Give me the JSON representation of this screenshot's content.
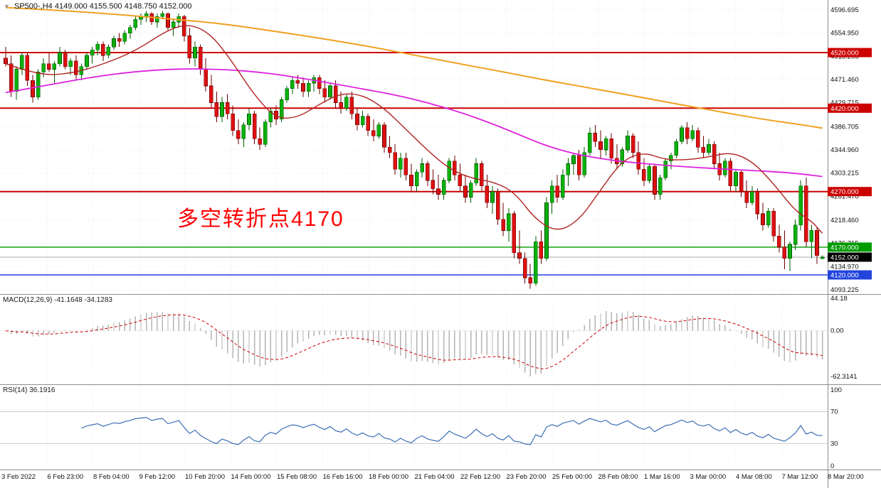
{
  "window": {
    "symbol_period": "SP500-,H4",
    "ohlc": "4149.000 4155.500 4148.750 4152.000"
  },
  "indicators": {
    "macd": {
      "label": "MACD(12,26,9) -41.1648 -34.1283",
      "params": [
        12,
        26,
        9
      ],
      "current": {
        "macd": -41.1648,
        "signal": -34.1283
      },
      "axis_labels": [
        "44.18",
        "0.00",
        "-62.3141"
      ],
      "axis_values": [
        44.18,
        0,
        -62.3141
      ]
    },
    "rsi": {
      "label": "RSI(14) 36.1916",
      "period": 14,
      "current": 36.1916,
      "axis_labels": [
        "100",
        "70",
        "30",
        "0"
      ],
      "axis_values": [
        100,
        70,
        30,
        0
      ],
      "levels": [
        70,
        30
      ]
    }
  },
  "colors": {
    "bull": "#0cb00c",
    "bull_border": "#005a00",
    "bear": "#dd1111",
    "bear_border": "#6b0000",
    "line_red": "#cc0000",
    "line_green": "#009b00",
    "line_blue": "#2244dd",
    "current_badge": "#000000",
    "macd_hist": "#b4b4b4",
    "macd_signal": "#cc0000",
    "rsi_line": "#3b6fb5",
    "grid": "#e7e7e7",
    "separator": "#8f8f8f"
  },
  "chart_data": {
    "type": "candlestick",
    "symbol": "SP500-",
    "timeframe": "H4",
    "title": "SP500-,H4",
    "ylim": [
      4093.225,
      4596.695
    ],
    "y_axis_labels": [
      "4596.695",
      "4554.950",
      "4513.205",
      "4471.460",
      "4429.715",
      "4386.705",
      "4344.960",
      "4303.215",
      "4261.470",
      "4218.460",
      "4176.715",
      "4134.970",
      "4093.225"
    ],
    "x_axis_labels": [
      "3 Feb 2022",
      "6 Feb 23:00",
      "8 Feb 04:00",
      "9 Feb 12:00",
      "10 Feb 20:00",
      "14 Feb 00:00",
      "15 Feb 08:00",
      "16 Feb 16:00",
      "18 Feb 00:00",
      "21 Feb 04:00",
      "22 Feb 12:00",
      "23 Feb 20:00",
      "25 Feb 00:00",
      "28 Feb 08:00",
      "1 Mar 16:00",
      "3 Mar 00:00",
      "4 Mar 08:00",
      "7 Mar 12:00",
      "8 Mar 20:00"
    ],
    "annotation": {
      "text": "多空转折点4170",
      "color": "#ff0000"
    },
    "horizontal_lines": [
      {
        "price": 4520,
        "label": "4520.000",
        "color": "#cc0000",
        "width": 2
      },
      {
        "price": 4420,
        "label": "4420.000",
        "color": "#cc0000",
        "width": 2
      },
      {
        "price": 4270,
        "label": "4270.000",
        "color": "#cc0000",
        "width": 2
      },
      {
        "price": 4170,
        "label": "4170.000",
        "color": "#009b00",
        "width": 1.4
      },
      {
        "price": 4120,
        "label": "4120.000",
        "color": "#2244dd",
        "width": 1.4
      }
    ],
    "current_price": {
      "price": 4152,
      "label": "4152.000"
    },
    "candles": [
      [
        4510,
        4530,
        4495,
        4500
      ],
      [
        4500,
        4515,
        4440,
        4450
      ],
      [
        4450,
        4495,
        4435,
        4490
      ],
      [
        4490,
        4520,
        4480,
        4515
      ],
      [
        4515,
        4520,
        4460,
        4470
      ],
      [
        4470,
        4480,
        4430,
        4440
      ],
      [
        4440,
        4490,
        4435,
        4485
      ],
      [
        4485,
        4510,
        4475,
        4500
      ],
      [
        4500,
        4520,
        4485,
        4490
      ],
      [
        4490,
        4505,
        4465,
        4500
      ],
      [
        4500,
        4530,
        4495,
        4520
      ],
      [
        4520,
        4525,
        4490,
        4495
      ],
      [
        4495,
        4510,
        4480,
        4505
      ],
      [
        4505,
        4515,
        4470,
        4480
      ],
      [
        4480,
        4500,
        4470,
        4495
      ],
      [
        4495,
        4520,
        4490,
        4515
      ],
      [
        4515,
        4530,
        4500,
        4525
      ],
      [
        4525,
        4540,
        4515,
        4535
      ],
      [
        4535,
        4540,
        4505,
        4515
      ],
      [
        4515,
        4535,
        4510,
        4530
      ],
      [
        4530,
        4550,
        4525,
        4545
      ],
      [
        4545,
        4555,
        4530,
        4540
      ],
      [
        4540,
        4560,
        4535,
        4555
      ],
      [
        4555,
        4570,
        4545,
        4565
      ],
      [
        4565,
        4585,
        4560,
        4580
      ],
      [
        4580,
        4590,
        4570,
        4585
      ],
      [
        4585,
        4595,
        4575,
        4590
      ],
      [
        4590,
        4593,
        4570,
        4575
      ],
      [
        4575,
        4590,
        4565,
        4585
      ],
      [
        4585,
        4595,
        4580,
        4590
      ],
      [
        4590,
        4592,
        4560,
        4565
      ],
      [
        4565,
        4580,
        4550,
        4575
      ],
      [
        4575,
        4590,
        4565,
        4585
      ],
      [
        4585,
        4588,
        4540,
        4550
      ],
      [
        4550,
        4565,
        4500,
        4510
      ],
      [
        4510,
        4540,
        4495,
        4530
      ],
      [
        4530,
        4535,
        4480,
        4490
      ],
      [
        4490,
        4510,
        4450,
        4460
      ],
      [
        4460,
        4480,
        4420,
        4430
      ],
      [
        4430,
        4450,
        4395,
        4405
      ],
      [
        4405,
        4440,
        4395,
        4430
      ],
      [
        4430,
        4445,
        4400,
        4410
      ],
      [
        4410,
        4425,
        4370,
        4380
      ],
      [
        4380,
        4400,
        4355,
        4365
      ],
      [
        4365,
        4395,
        4350,
        4390
      ],
      [
        4390,
        4420,
        4380,
        4410
      ],
      [
        4410,
        4415,
        4355,
        4365
      ],
      [
        4365,
        4385,
        4345,
        4355
      ],
      [
        4355,
        4400,
        4350,
        4395
      ],
      [
        4395,
        4420,
        4385,
        4415
      ],
      [
        4415,
        4425,
        4390,
        4400
      ],
      [
        4400,
        4440,
        4395,
        4435
      ],
      [
        4435,
        4460,
        4430,
        4455
      ],
      [
        4455,
        4475,
        4445,
        4470
      ],
      [
        4470,
        4480,
        4455,
        4465
      ],
      [
        4465,
        4475,
        4440,
        4450
      ],
      [
        4450,
        4470,
        4440,
        4465
      ],
      [
        4465,
        4480,
        4450,
        4475
      ],
      [
        4475,
        4480,
        4445,
        4455
      ],
      [
        4455,
        4470,
        4430,
        4440
      ],
      [
        4440,
        4465,
        4435,
        4460
      ],
      [
        4460,
        4470,
        4420,
        4430
      ],
      [
        4430,
        4450,
        4410,
        4420
      ],
      [
        4420,
        4445,
        4415,
        4440
      ],
      [
        4440,
        4450,
        4400,
        4410
      ],
      [
        4410,
        4420,
        4380,
        4390
      ],
      [
        4390,
        4415,
        4385,
        4405
      ],
      [
        4405,
        4410,
        4370,
        4380
      ],
      [
        4380,
        4400,
        4360,
        4370
      ],
      [
        4370,
        4395,
        4365,
        4390
      ],
      [
        4390,
        4395,
        4340,
        4350
      ],
      [
        4350,
        4370,
        4330,
        4340
      ],
      [
        4340,
        4355,
        4300,
        4310
      ],
      [
        4310,
        4340,
        4295,
        4330
      ],
      [
        4330,
        4340,
        4290,
        4300
      ],
      [
        4300,
        4320,
        4270,
        4280
      ],
      [
        4280,
        4310,
        4270,
        4305
      ],
      [
        4305,
        4330,
        4295,
        4320
      ],
      [
        4320,
        4325,
        4280,
        4290
      ],
      [
        4290,
        4310,
        4265,
        4275
      ],
      [
        4275,
        4300,
        4255,
        4265
      ],
      [
        4265,
        4295,
        4255,
        4290
      ],
      [
        4290,
        4330,
        4285,
        4325
      ],
      [
        4325,
        4335,
        4290,
        4300
      ],
      [
        4300,
        4320,
        4270,
        4280
      ],
      [
        4280,
        4300,
        4250,
        4260
      ],
      [
        4260,
        4290,
        4250,
        4285
      ],
      [
        4285,
        4330,
        4280,
        4320
      ],
      [
        4320,
        4325,
        4270,
        4280
      ],
      [
        4280,
        4300,
        4240,
        4250
      ],
      [
        4250,
        4280,
        4230,
        4270
      ],
      [
        4270,
        4275,
        4210,
        4220
      ],
      [
        4220,
        4250,
        4190,
        4200
      ],
      [
        4200,
        4240,
        4180,
        4230
      ],
      [
        4230,
        4235,
        4150,
        4160
      ],
      [
        4160,
        4200,
        4140,
        4150
      ],
      [
        4150,
        4160,
        4105,
        4115
      ],
      [
        4115,
        4140,
        4095,
        4105
      ],
      [
        4105,
        4190,
        4100,
        4180
      ],
      [
        4180,
        4200,
        4140,
        4150
      ],
      [
        4150,
        4260,
        4145,
        4250
      ],
      [
        4250,
        4290,
        4230,
        4280
      ],
      [
        4280,
        4300,
        4250,
        4260
      ],
      [
        4260,
        4310,
        4255,
        4300
      ],
      [
        4300,
        4330,
        4280,
        4320
      ],
      [
        4320,
        4340,
        4300,
        4335
      ],
      [
        4335,
        4345,
        4290,
        4300
      ],
      [
        4300,
        4350,
        4295,
        4340
      ],
      [
        4340,
        4385,
        4335,
        4375
      ],
      [
        4375,
        4390,
        4350,
        4360
      ],
      [
        4360,
        4380,
        4330,
        4345
      ],
      [
        4345,
        4370,
        4335,
        4365
      ],
      [
        4365,
        4375,
        4320,
        4330
      ],
      [
        4330,
        4355,
        4310,
        4320
      ],
      [
        4320,
        4350,
        4315,
        4345
      ],
      [
        4345,
        4380,
        4340,
        4370
      ],
      [
        4370,
        4375,
        4330,
        4340
      ],
      [
        4340,
        4360,
        4300,
        4310
      ],
      [
        4310,
        4330,
        4280,
        4290
      ],
      [
        4290,
        4320,
        4285,
        4315
      ],
      [
        4315,
        4320,
        4255,
        4265
      ],
      [
        4265,
        4300,
        4255,
        4295
      ],
      [
        4295,
        4330,
        4290,
        4325
      ],
      [
        4325,
        4340,
        4310,
        4335
      ],
      [
        4335,
        4365,
        4330,
        4360
      ],
      [
        4360,
        4390,
        4355,
        4385
      ],
      [
        4385,
        4395,
        4355,
        4365
      ],
      [
        4365,
        4390,
        4360,
        4380
      ],
      [
        4380,
        4385,
        4340,
        4350
      ],
      [
        4350,
        4370,
        4330,
        4340
      ],
      [
        4340,
        4365,
        4335,
        4355
      ],
      [
        4355,
        4360,
        4310,
        4320
      ],
      [
        4320,
        4340,
        4290,
        4300
      ],
      [
        4300,
        4330,
        4295,
        4325
      ],
      [
        4325,
        4330,
        4270,
        4280
      ],
      [
        4280,
        4310,
        4270,
        4305
      ],
      [
        4305,
        4310,
        4260,
        4270
      ],
      [
        4270,
        4290,
        4240,
        4250
      ],
      [
        4250,
        4280,
        4245,
        4270
      ],
      [
        4270,
        4275,
        4220,
        4230
      ],
      [
        4230,
        4250,
        4200,
        4210
      ],
      [
        4210,
        4240,
        4205,
        4235
      ],
      [
        4235,
        4240,
        4180,
        4190
      ],
      [
        4190,
        4210,
        4160,
        4170
      ],
      [
        4170,
        4200,
        4130,
        4150
      ],
      [
        4150,
        4180,
        4127,
        4175
      ],
      [
        4175,
        4220,
        4165,
        4210
      ],
      [
        4210,
        4290,
        4200,
        4280
      ],
      [
        4280,
        4295,
        4170,
        4180
      ],
      [
        4180,
        4210,
        4150,
        4200
      ],
      [
        4200,
        4205,
        4140,
        4155
      ],
      [
        4149,
        4155.5,
        4148.75,
        4152
      ]
    ],
    "overlays": {
      "ma_slow": {
        "color": "#f0a020",
        "points": [
          [
            0,
            4601
          ],
          [
            10,
            4596
          ],
          [
            20,
            4589
          ],
          [
            30,
            4581
          ],
          [
            40,
            4572
          ],
          [
            50,
            4558
          ],
          [
            60,
            4543
          ],
          [
            70,
            4526
          ],
          [
            80,
            4507
          ],
          [
            90,
            4489
          ],
          [
            100,
            4470
          ],
          [
            110,
            4453
          ],
          [
            120,
            4435
          ],
          [
            130,
            4417
          ],
          [
            140,
            4400
          ],
          [
            146,
            4392
          ],
          [
            151,
            4384
          ]
        ]
      },
      "ma_medium": {
        "color": "#dd22dd",
        "points": [
          [
            0,
            4448
          ],
          [
            8,
            4462
          ],
          [
            16,
            4476
          ],
          [
            24,
            4486
          ],
          [
            32,
            4491
          ],
          [
            40,
            4490
          ],
          [
            48,
            4484
          ],
          [
            56,
            4472
          ],
          [
            64,
            4458
          ],
          [
            72,
            4444
          ],
          [
            78,
            4430
          ],
          [
            84,
            4413
          ],
          [
            90,
            4392
          ],
          [
            95,
            4372
          ],
          [
            100,
            4352
          ],
          [
            105,
            4338
          ],
          [
            110,
            4329
          ],
          [
            116,
            4322
          ],
          [
            122,
            4317
          ],
          [
            128,
            4313
          ],
          [
            134,
            4310
          ],
          [
            140,
            4307
          ],
          [
            146,
            4303
          ],
          [
            151,
            4297
          ]
        ]
      },
      "ma_fast": {
        "color": "#b22222",
        "points": [
          [
            0,
            4500
          ],
          [
            6,
            4479
          ],
          [
            12,
            4482
          ],
          [
            18,
            4499
          ],
          [
            24,
            4523
          ],
          [
            30,
            4561
          ],
          [
            34,
            4572
          ],
          [
            38,
            4553
          ],
          [
            42,
            4502
          ],
          [
            46,
            4443
          ],
          [
            50,
            4401
          ],
          [
            54,
            4403
          ],
          [
            58,
            4427
          ],
          [
            62,
            4447
          ],
          [
            66,
            4444
          ],
          [
            70,
            4420
          ],
          [
            74,
            4382
          ],
          [
            78,
            4344
          ],
          [
            82,
            4311
          ],
          [
            86,
            4294
          ],
          [
            90,
            4288
          ],
          [
            94,
            4270
          ],
          [
            98,
            4219
          ],
          [
            102,
            4197
          ],
          [
            106,
            4218
          ],
          [
            110,
            4273
          ],
          [
            114,
            4326
          ],
          [
            118,
            4341
          ],
          [
            122,
            4327
          ],
          [
            126,
            4327
          ],
          [
            130,
            4332
          ],
          [
            134,
            4341
          ],
          [
            138,
            4325
          ],
          [
            142,
            4284
          ],
          [
            146,
            4235
          ],
          [
            149,
            4217
          ],
          [
            151,
            4195
          ]
        ]
      }
    }
  }
}
